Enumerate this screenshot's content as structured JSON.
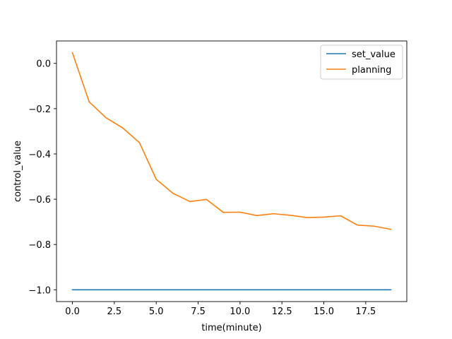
{
  "chart_data": {
    "type": "line",
    "title": "",
    "xlabel": "time(minute)",
    "ylabel": "control_value",
    "xlim": [
      -0.95,
      19.95
    ],
    "ylim": [
      -1.052,
      0.099
    ],
    "xticks": [
      0.0,
      2.5,
      5.0,
      7.5,
      10.0,
      12.5,
      15.0,
      17.5
    ],
    "xtick_labels": [
      "0.0",
      "2.5",
      "5.0",
      "7.5",
      "10.0",
      "12.5",
      "15.0",
      "17.5"
    ],
    "yticks": [
      0.0,
      -0.2,
      -0.4,
      -0.6,
      -0.8,
      -1.0
    ],
    "ytick_labels": [
      "0.0",
      "−0.2",
      "−0.4",
      "−0.6",
      "−0.8",
      "−1.0"
    ],
    "grid": false,
    "legend_position": "top-right",
    "x": [
      0,
      1,
      2,
      3,
      4,
      5,
      6,
      7,
      8,
      9,
      10,
      11,
      12,
      13,
      14,
      15,
      16,
      17,
      18,
      19
    ],
    "series": [
      {
        "name": "set_value",
        "color": "#1f77b4",
        "values": [
          -1.0,
          -1.0,
          -1.0,
          -1.0,
          -1.0,
          -1.0,
          -1.0,
          -1.0,
          -1.0,
          -1.0,
          -1.0,
          -1.0,
          -1.0,
          -1.0,
          -1.0,
          -1.0,
          -1.0,
          -1.0,
          -1.0,
          -1.0
        ]
      },
      {
        "name": "planning",
        "color": "#ff7f0e",
        "values": [
          0.047,
          -0.17,
          -0.24,
          -0.285,
          -0.35,
          -0.512,
          -0.574,
          -0.61,
          -0.601,
          -0.658,
          -0.657,
          -0.672,
          -0.664,
          -0.671,
          -0.681,
          -0.679,
          -0.673,
          -0.714,
          -0.719,
          -0.733
        ]
      }
    ]
  }
}
